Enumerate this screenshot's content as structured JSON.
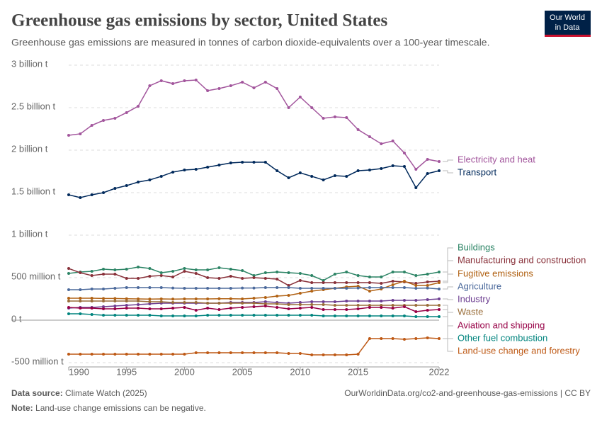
{
  "header": {
    "title": "Greenhouse gas emissions by sector, United States",
    "subtitle": "Greenhouse gas emissions are measured in tonnes of carbon dioxide-equivalents over a 100-year timescale.",
    "logo_line1": "Our World",
    "logo_line2": "in Data"
  },
  "chart_data": {
    "type": "line",
    "grid": true,
    "x": [
      1990,
      1991,
      1992,
      1993,
      1994,
      1995,
      1996,
      1997,
      1998,
      1999,
      2000,
      2001,
      2002,
      2003,
      2004,
      2005,
      2006,
      2007,
      2008,
      2009,
      2010,
      2011,
      2012,
      2013,
      2014,
      2015,
      2016,
      2017,
      2018,
      2019,
      2020,
      2021,
      2022
    ],
    "xlim": [
      1990,
      2022
    ],
    "xticks": [
      1990,
      1995,
      2000,
      2005,
      2010,
      2015,
      2022
    ],
    "ylim": [
      -500000000.0,
      3000000000.0
    ],
    "yticks": [
      {
        "value": -500000000.0,
        "label": "-500 million t"
      },
      {
        "value": 0,
        "label": "0 t"
      },
      {
        "value": 500000000.0,
        "label": "500 million t"
      },
      {
        "value": 1000000000.0,
        "label": "1 billion t"
      },
      {
        "value": 1500000000.0,
        "label": "1.5 billion t"
      },
      {
        "value": 2000000000.0,
        "label": "2 billion t"
      },
      {
        "value": 2500000000.0,
        "label": "2.5 billion t"
      },
      {
        "value": 3000000000.0,
        "label": "3 billion t"
      }
    ],
    "series": [
      {
        "name": "Electricity and heat",
        "color": "#a2559c",
        "values": [
          2175000000.0,
          2192000000.0,
          2292000000.0,
          2350000000.0,
          2375000000.0,
          2442000000.0,
          2517000000.0,
          2758000000.0,
          2817000000.0,
          2783000000.0,
          2817000000.0,
          2825000000.0,
          2700000000.0,
          2725000000.0,
          2758000000.0,
          2800000000.0,
          2733000000.0,
          2800000000.0,
          2725000000.0,
          2500000000.0,
          2625000000.0,
          2500000000.0,
          2375000000.0,
          2392000000.0,
          2383000000.0,
          2242000000.0,
          2158000000.0,
          2075000000.0,
          2108000000.0,
          1967000000.0,
          1775000000.0,
          1892000000.0,
          1867000000.0
        ]
      },
      {
        "name": "Transport",
        "color": "#00295b",
        "values": [
          1475000000.0,
          1442000000.0,
          1475000000.0,
          1500000000.0,
          1550000000.0,
          1583000000.0,
          1625000000.0,
          1650000000.0,
          1692000000.0,
          1742000000.0,
          1767000000.0,
          1775000000.0,
          1800000000.0,
          1825000000.0,
          1850000000.0,
          1858000000.0,
          1858000000.0,
          1858000000.0,
          1758000000.0,
          1675000000.0,
          1733000000.0,
          1692000000.0,
          1650000000.0,
          1700000000.0,
          1692000000.0,
          1758000000.0,
          1767000000.0,
          1783000000.0,
          1817000000.0,
          1808000000.0,
          1558000000.0,
          1725000000.0,
          1758000000.0
        ]
      },
      {
        "name": "Buildings",
        "color": "#2c8465",
        "values": [
          550000000.0,
          567000000.0,
          575000000.0,
          600000000.0,
          592000000.0,
          600000000.0,
          625000000.0,
          608000000.0,
          558000000.0,
          575000000.0,
          608000000.0,
          592000000.0,
          592000000.0,
          617000000.0,
          600000000.0,
          583000000.0,
          525000000.0,
          558000000.0,
          567000000.0,
          558000000.0,
          550000000.0,
          525000000.0,
          467000000.0,
          542000000.0,
          567000000.0,
          525000000.0,
          508000000.0,
          508000000.0,
          567000000.0,
          567000000.0,
          525000000.0,
          542000000.0,
          567000000.0
        ]
      },
      {
        "name": "Manufacturing and construction",
        "color": "#883039",
        "values": [
          608000000.0,
          558000000.0,
          525000000.0,
          542000000.0,
          542000000.0,
          492000000.0,
          492000000.0,
          517000000.0,
          525000000.0,
          508000000.0,
          575000000.0,
          550000000.0,
          500000000.0,
          492000000.0,
          517000000.0,
          492000000.0,
          500000000.0,
          492000000.0,
          483000000.0,
          408000000.0,
          467000000.0,
          442000000.0,
          442000000.0,
          442000000.0,
          442000000.0,
          442000000.0,
          442000000.0,
          433000000.0,
          458000000.0,
          450000000.0,
          433000000.0,
          450000000.0,
          458000000.0
        ]
      },
      {
        "name": "Fugitive emissions",
        "color": "#b16214",
        "values": [
          258000000.0,
          258000000.0,
          258000000.0,
          255000000.0,
          255000000.0,
          252000000.0,
          250000000.0,
          248000000.0,
          250000000.0,
          248000000.0,
          250000000.0,
          250000000.0,
          250000000.0,
          252000000.0,
          252000000.0,
          250000000.0,
          258000000.0,
          267000000.0,
          283000000.0,
          292000000.0,
          317000000.0,
          342000000.0,
          358000000.0,
          375000000.0,
          392000000.0,
          400000000.0,
          342000000.0,
          367000000.0,
          417000000.0,
          458000000.0,
          408000000.0,
          408000000.0,
          442000000.0
        ]
      },
      {
        "name": "Agriculture",
        "color": "#4c6a9c",
        "values": [
          358000000.0,
          358000000.0,
          367000000.0,
          367000000.0,
          375000000.0,
          383000000.0,
          383000000.0,
          383000000.0,
          383000000.0,
          378000000.0,
          375000000.0,
          375000000.0,
          375000000.0,
          375000000.0,
          375000000.0,
          378000000.0,
          378000000.0,
          383000000.0,
          383000000.0,
          383000000.0,
          375000000.0,
          375000000.0,
          375000000.0,
          375000000.0,
          375000000.0,
          378000000.0,
          383000000.0,
          383000000.0,
          383000000.0,
          383000000.0,
          375000000.0,
          378000000.0,
          367000000.0
        ]
      },
      {
        "name": "Industry",
        "color": "#6d3e91",
        "values": [
          142000000.0,
          150000000.0,
          150000000.0,
          158000000.0,
          167000000.0,
          175000000.0,
          183000000.0,
          192000000.0,
          200000000.0,
          200000000.0,
          200000000.0,
          200000000.0,
          200000000.0,
          200000000.0,
          208000000.0,
          208000000.0,
          208000000.0,
          217000000.0,
          208000000.0,
          200000000.0,
          208000000.0,
          217000000.0,
          217000000.0,
          217000000.0,
          225000000.0,
          225000000.0,
          225000000.0,
          225000000.0,
          233000000.0,
          233000000.0,
          233000000.0,
          242000000.0,
          250000000.0
        ]
      },
      {
        "name": "Waste",
        "color": "#996d39",
        "values": [
          225000000.0,
          225000000.0,
          225000000.0,
          225000000.0,
          225000000.0,
          225000000.0,
          225000000.0,
          217000000.0,
          217000000.0,
          208000000.0,
          208000000.0,
          208000000.0,
          200000000.0,
          200000000.0,
          200000000.0,
          200000000.0,
          200000000.0,
          192000000.0,
          192000000.0,
          183000000.0,
          183000000.0,
          183000000.0,
          183000000.0,
          175000000.0,
          175000000.0,
          175000000.0,
          175000000.0,
          175000000.0,
          175000000.0,
          175000000.0,
          175000000.0,
          175000000.0,
          175000000.0
        ]
      },
      {
        "name": "Aviation and shipping",
        "color": "#970046",
        "values": [
          150000000.0,
          142000000.0,
          142000000.0,
          133000000.0,
          133000000.0,
          142000000.0,
          142000000.0,
          133000000.0,
          133000000.0,
          142000000.0,
          150000000.0,
          117000000.0,
          142000000.0,
          125000000.0,
          142000000.0,
          150000000.0,
          158000000.0,
          167000000.0,
          150000000.0,
          133000000.0,
          142000000.0,
          150000000.0,
          125000000.0,
          125000000.0,
          125000000.0,
          133000000.0,
          150000000.0,
          150000000.0,
          142000000.0,
          158000000.0,
          100000000.0,
          117000000.0,
          125000000.0
        ]
      },
      {
        "name": "Other fuel combustion",
        "color": "#00847e",
        "values": [
          75000000.0,
          75000000.0,
          67000000.0,
          58000000.0,
          58000000.0,
          58000000.0,
          58000000.0,
          58000000.0,
          50000000.0,
          50000000.0,
          50000000.0,
          50000000.0,
          58000000.0,
          58000000.0,
          58000000.0,
          58000000.0,
          58000000.0,
          58000000.0,
          58000000.0,
          58000000.0,
          58000000.0,
          58000000.0,
          50000000.0,
          50000000.0,
          50000000.0,
          50000000.0,
          50000000.0,
          50000000.0,
          50000000.0,
          50000000.0,
          42000000.0,
          42000000.0,
          42000000.0
        ]
      },
      {
        "name": "Land-use change and forestry",
        "color": "#be5915",
        "values": [
          -400000000.0,
          -400000000.0,
          -400000000.0,
          -400000000.0,
          -400000000.0,
          -400000000.0,
          -400000000.0,
          -400000000.0,
          -400000000.0,
          -400000000.0,
          -400000000.0,
          -383000000.0,
          -383000000.0,
          -383000000.0,
          -383000000.0,
          -383000000.0,
          -383000000.0,
          -383000000.0,
          -383000000.0,
          -392000000.0,
          -392000000.0,
          -408000000.0,
          -408000000.0,
          -408000000.0,
          -408000000.0,
          -400000000.0,
          -217000000.0,
          -217000000.0,
          -217000000.0,
          -225000000.0,
          -217000000.0,
          -208000000.0,
          -217000000.0
        ]
      }
    ]
  },
  "footer": {
    "source_label": "Data source:",
    "source": "Climate Watch (2025)",
    "url": "OurWorldinData.org/co2-and-greenhouse-gas-emissions | CC BY",
    "note_label": "Note:",
    "note": "Land-use change emissions can be negative."
  }
}
